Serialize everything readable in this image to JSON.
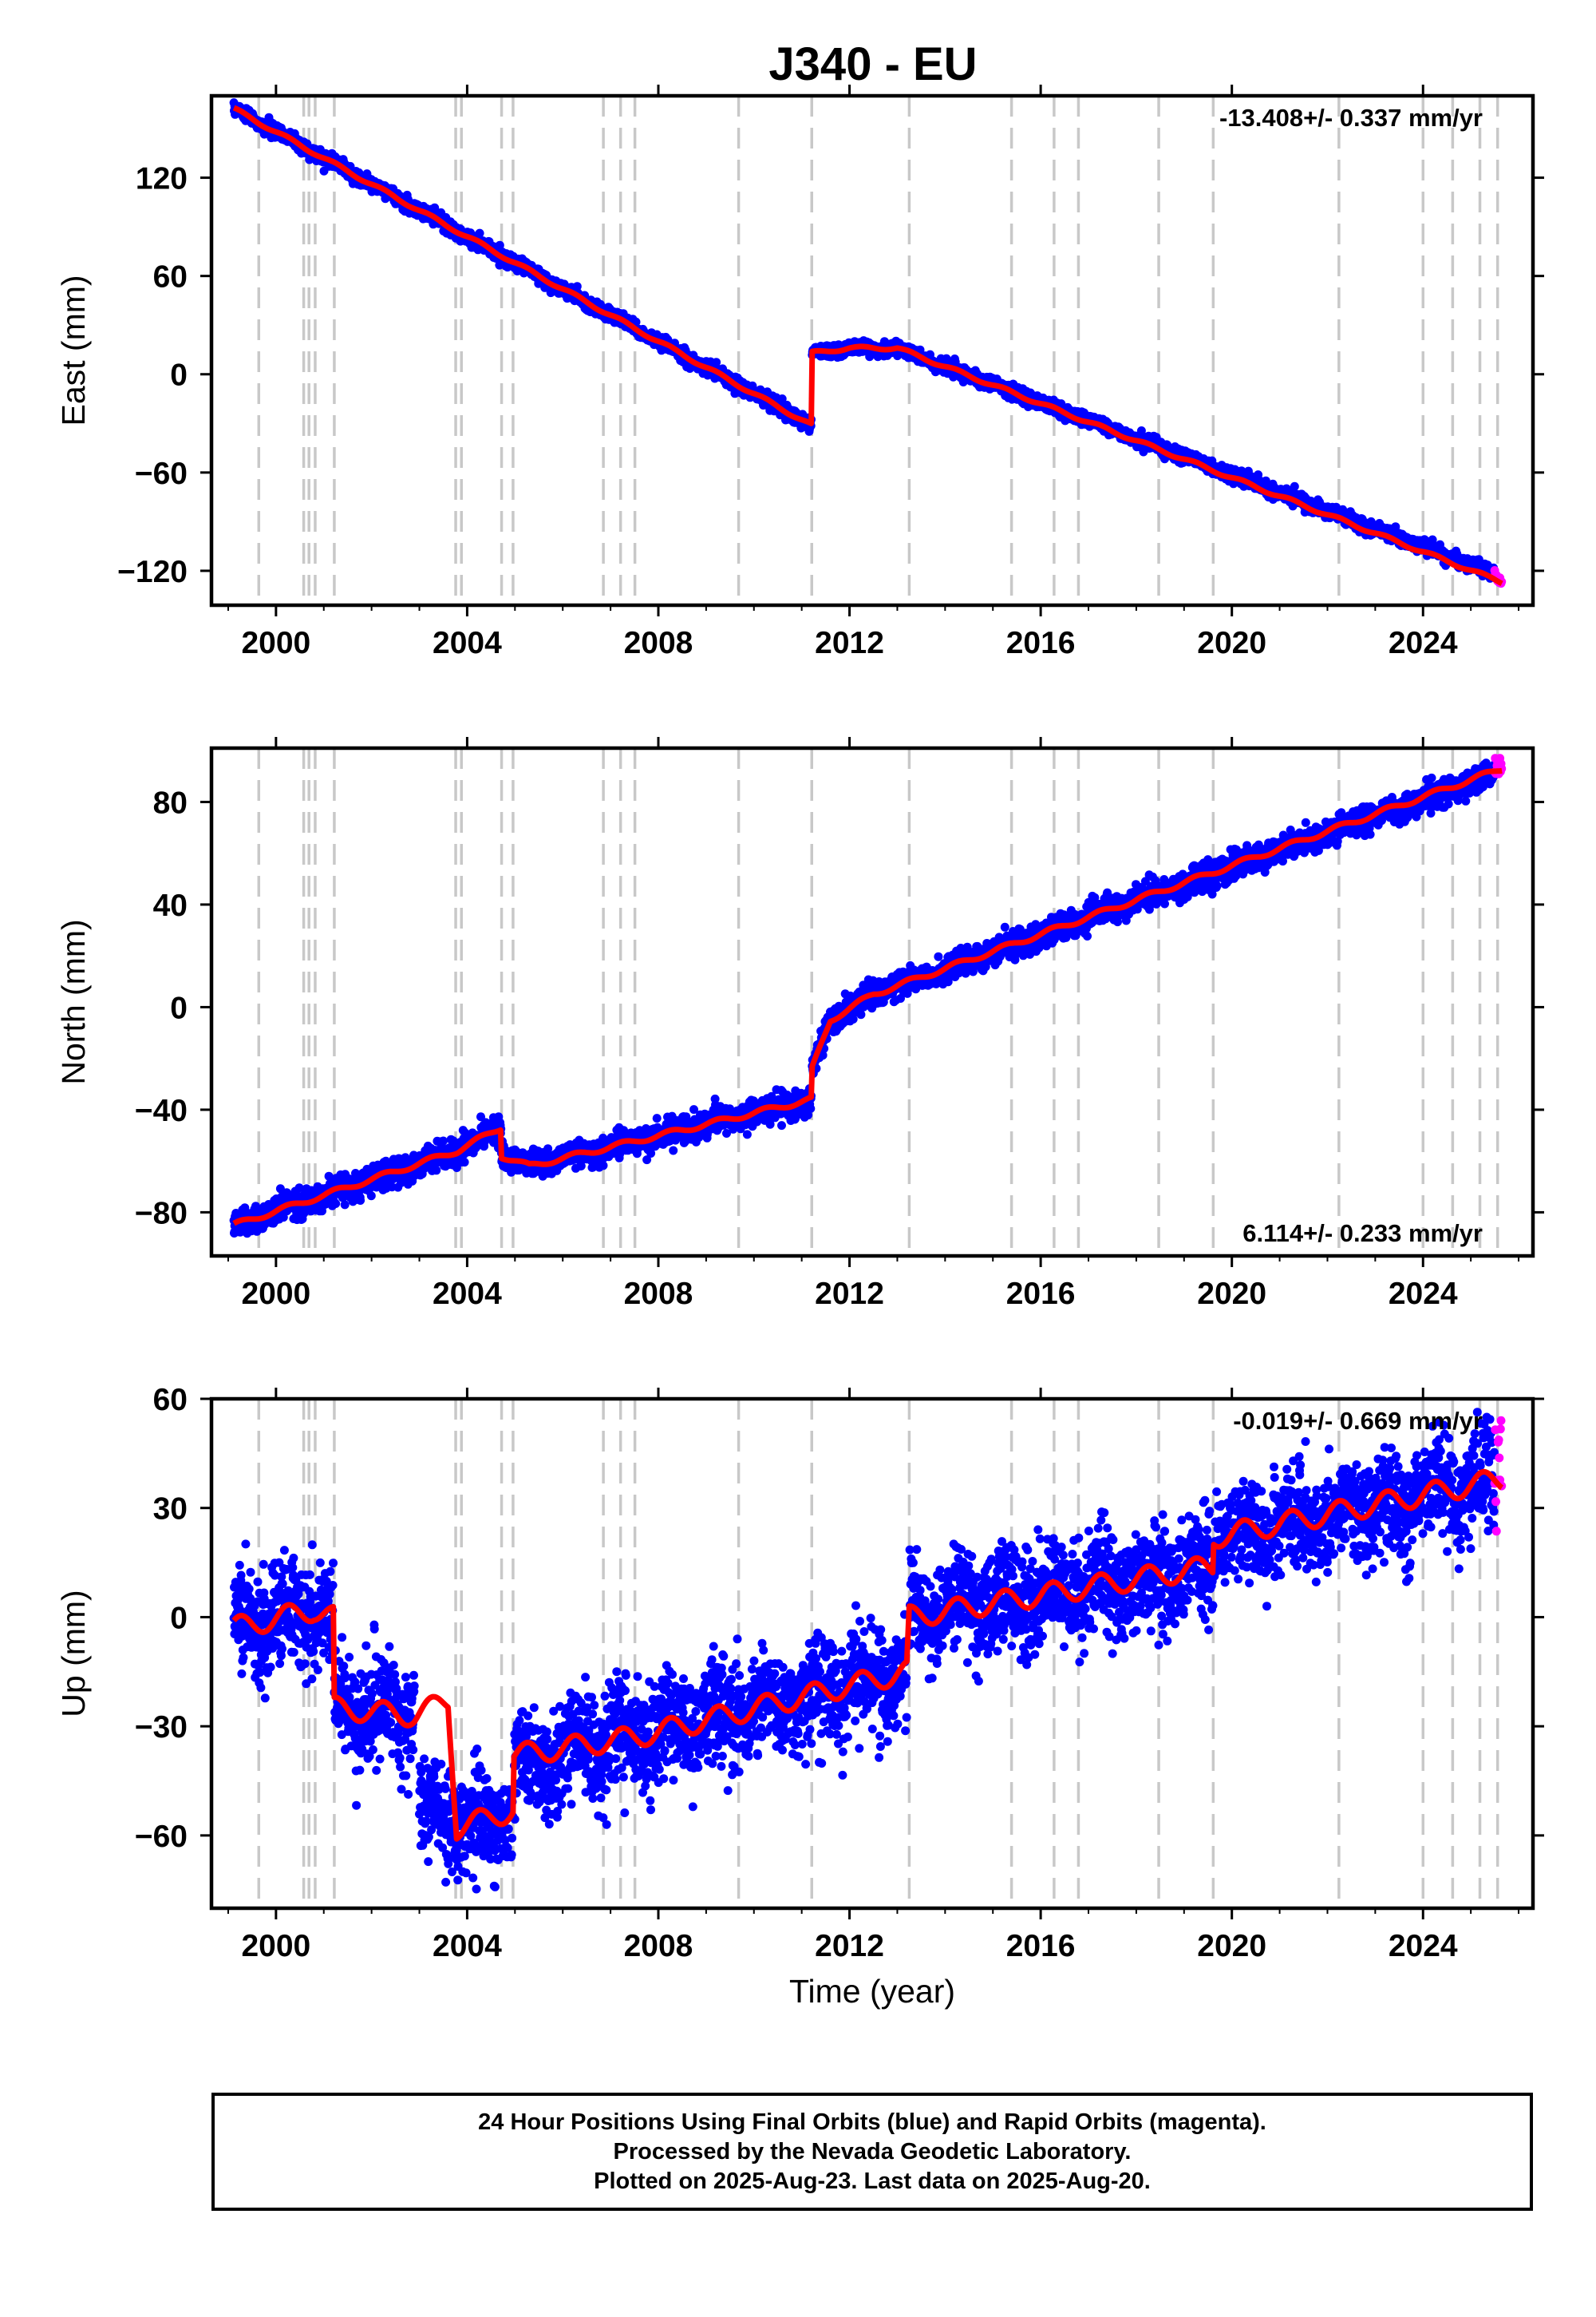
{
  "chart_data": {
    "title": "J340 - EU",
    "type": "scatter",
    "x_ticks": [
      2000,
      2004,
      2008,
      2012,
      2016,
      2020,
      2024
    ],
    "xlim": [
      1998.65,
      2026.3
    ],
    "xlabel": "Time (year)",
    "event_lines": [
      1999.64,
      2000.58,
      2000.69,
      2000.82,
      2001.22,
      2003.76,
      2003.88,
      2004.72,
      2004.96,
      2006.85,
      2007.21,
      2007.51,
      2009.68,
      2011.21,
      2013.25,
      2015.39,
      2016.28,
      2016.79,
      2018.47,
      2019.61,
      2022.24,
      2024.0,
      2024.62,
      2025.19,
      2025.56
    ],
    "colors": {
      "final_orbits": "#0000ff",
      "rapid_orbits": "#ff00ff",
      "model": "#ff0000",
      "event_lines": "#c8c8c8"
    },
    "panels": [
      {
        "id": "east",
        "ylabel": "East (mm)",
        "ylim": [
          -141,
          170
        ],
        "y_ticks": [
          -120,
          -60,
          0,
          60,
          120
        ],
        "rate": "-13.408+/- 0.337 mm/yr",
        "rate_position": "top-right",
        "noise_mm": 2,
        "series": [
          {
            "segment": "final",
            "points": [
              [
                1999.12,
                162
              ],
              [
                2011.2,
                -31
              ]
            ]
          },
          {
            "segment": "final",
            "points": [
              [
                2011.22,
                13
              ],
              [
                2012.0,
                16
              ],
              [
                2013.0,
                16
              ],
              [
                2025.5,
                -122
              ]
            ]
          },
          {
            "segment": "rapid",
            "points": [
              [
                2025.5,
                -122
              ],
              [
                2025.65,
                -127
              ]
            ]
          }
        ],
        "model": [
          [
            1999.12,
            162
          ],
          [
            2011.2,
            -31
          ],
          [
            2011.22,
            13
          ],
          [
            2012.0,
            16
          ],
          [
            2013.0,
            16
          ],
          [
            2025.65,
            -127
          ]
        ]
      },
      {
        "id": "north",
        "ylabel": "North (mm)",
        "ylim": [
          -97,
          101
        ],
        "y_ticks": [
          -80,
          -40,
          0,
          40,
          80
        ],
        "rate": "6.114+/- 0.233 mm/yr",
        "rate_position": "bottom-right",
        "noise_mm": 2.5,
        "series": [
          {
            "segment": "final",
            "points": [
              [
                1999.12,
                -85
              ],
              [
                2003.8,
                -56
              ],
              [
                2004.7,
                -47
              ],
              [
                2004.72,
                -58
              ],
              [
                2005.3,
                -62
              ],
              [
                2011.2,
                -36
              ]
            ]
          },
          {
            "segment": "final",
            "points": [
              [
                2011.22,
                -24
              ],
              [
                2011.6,
                -5
              ],
              [
                2012.5,
                5
              ],
              [
                2025.5,
                91
              ]
            ]
          },
          {
            "segment": "rapid",
            "points": [
              [
                2025.5,
                91
              ],
              [
                2025.65,
                97
              ]
            ]
          }
        ],
        "model": [
          [
            1999.12,
            -85
          ],
          [
            2003.8,
            -56
          ],
          [
            2004.7,
            -47
          ],
          [
            2004.72,
            -58
          ],
          [
            2005.3,
            -62
          ],
          [
            2011.2,
            -36
          ],
          [
            2011.22,
            -24
          ],
          [
            2011.6,
            -5
          ],
          [
            2012.5,
            5
          ],
          [
            2025.65,
            93
          ]
        ]
      },
      {
        "id": "up",
        "ylabel": "Up (mm)",
        "ylim": [
          -80,
          60
        ],
        "y_ticks": [
          -60,
          -30,
          0,
          30,
          60
        ],
        "rate": "-0.019+/- 0.669 mm/yr",
        "rate_position": "top-right",
        "noise_mm": 7,
        "series": [
          {
            "segment": "final",
            "points": [
              [
                1999.12,
                -3
              ],
              [
                2000.8,
                2
              ],
              [
                2001.2,
                0
              ]
            ]
          },
          {
            "segment": "final",
            "points": [
              [
                2001.22,
                -25
              ],
              [
                2002.9,
                -27
              ]
            ]
          },
          {
            "segment": "final",
            "points": [
              [
                2003.0,
                -52
              ],
              [
                2003.8,
                -57
              ],
              [
                2004.96,
                -53
              ]
            ]
          },
          {
            "segment": "final",
            "points": [
              [
                2004.98,
                -40
              ],
              [
                2007.5,
                -33
              ],
              [
                2013.2,
                -15
              ]
            ]
          },
          {
            "segment": "final",
            "points": [
              [
                2013.25,
                0
              ],
              [
                2019.6,
                14
              ],
              [
                2019.62,
                22
              ],
              [
                2025.5,
                37
              ]
            ]
          },
          {
            "segment": "rapid",
            "points": [
              [
                2025.5,
                37
              ],
              [
                2025.65,
                45
              ]
            ]
          }
        ],
        "model": [
          [
            1999.12,
            -3
          ],
          [
            2000.8,
            2
          ],
          [
            2001.2,
            0
          ],
          [
            2001.22,
            -25
          ],
          [
            2002.9,
            -27
          ],
          [
            2003.6,
            -23
          ],
          [
            2003.78,
            -58
          ],
          [
            2004.96,
            -53
          ],
          [
            2004.98,
            -38
          ],
          [
            2007.5,
            -33
          ],
          [
            2013.2,
            -15
          ],
          [
            2013.25,
            0
          ],
          [
            2019.6,
            14
          ],
          [
            2019.62,
            22
          ],
          [
            2025.65,
            38
          ]
        ]
      }
    ]
  },
  "caption": {
    "line1": "24 Hour Positions Using Final Orbits (blue) and Rapid Orbits (magenta).",
    "line2": "Processed by the Nevada Geodetic Laboratory.",
    "line3": "Plotted on 2025-Aug-23. Last data on 2025-Aug-20."
  }
}
